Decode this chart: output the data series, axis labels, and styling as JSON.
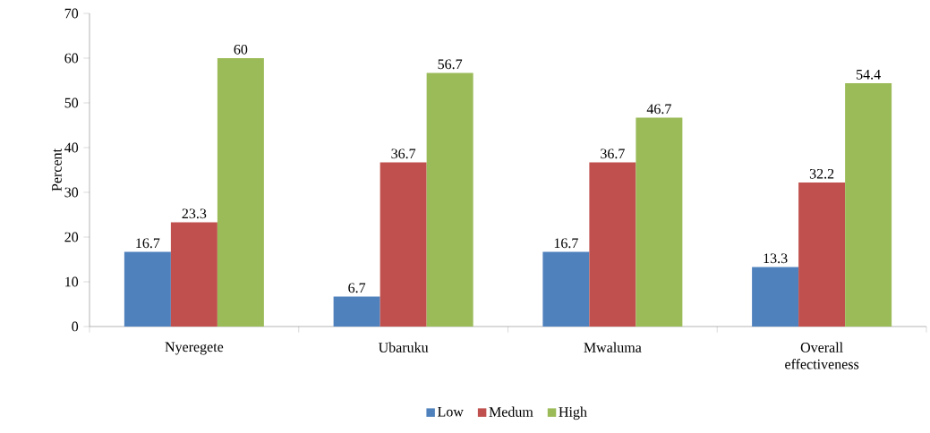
{
  "chart_data": {
    "type": "bar",
    "ylabel": "Percent",
    "categories": [
      "Nyeregete",
      "Ubaruku",
      "Mwaluma",
      "Overall effectiveness"
    ],
    "series": [
      {
        "name": "Low",
        "color": "#4f81bd",
        "values": [
          16.7,
          6.7,
          16.7,
          13.3
        ]
      },
      {
        "name": "Medum",
        "color": "#c0504d",
        "values": [
          23.3,
          36.7,
          36.7,
          32.2
        ]
      },
      {
        "name": "High",
        "color": "#9bbb59",
        "values": [
          60,
          56.7,
          46.7,
          54.4
        ]
      }
    ],
    "ylim": [
      0,
      70
    ],
    "yticks": [
      0,
      10,
      20,
      30,
      40,
      50,
      60,
      70
    ],
    "data_labels": true,
    "legend": "bottom",
    "grid": false
  }
}
